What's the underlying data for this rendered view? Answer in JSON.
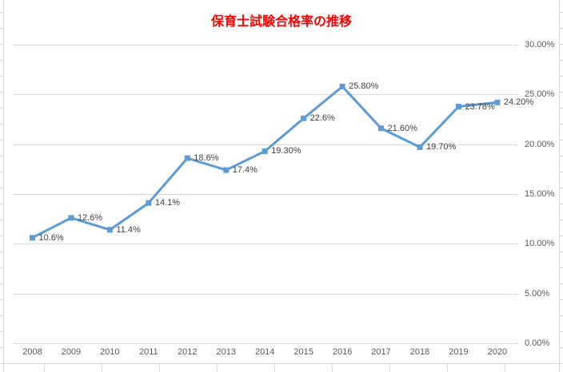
{
  "chart_data": {
    "type": "line",
    "title": "保育士試験合格率の推移",
    "title_color": "#FF0000",
    "categories": [
      "2008",
      "2009",
      "2010",
      "2011",
      "2012",
      "2013",
      "2014",
      "2015",
      "2016",
      "2017",
      "2018",
      "2019",
      "2020"
    ],
    "series": [
      {
        "name": "保育士試験合格率",
        "values": [
          10.6,
          12.6,
          11.4,
          14.1,
          18.6,
          17.4,
          19.3,
          22.6,
          25.8,
          21.6,
          19.7,
          23.78,
          24.2
        ],
        "point_labels": [
          "10.6%",
          "12.6%",
          "11.4%",
          "14.1%",
          "18.6%",
          "17.4%",
          "19.30%",
          "22.6%",
          "25.80%",
          "21.60%",
          "19.70%",
          "23.78%",
          "24.20%"
        ],
        "color": "#5B9BD5"
      }
    ],
    "xlabel": "",
    "ylabel": "",
    "ylim": [
      0,
      30
    ],
    "y_axis_side": "right",
    "y_tick_labels": [
      "30.00%",
      "25.00%",
      "20.00%",
      "15.00%",
      "10.00%",
      "5.00%",
      "0.00%"
    ],
    "y_tick_values": [
      30,
      25,
      20,
      15,
      10,
      5,
      0
    ],
    "grid": "horizontal",
    "legend_position": "none",
    "colors": {
      "gridline": "#d9d9d9",
      "axis_text": "#595959",
      "data_label_text": "#404040",
      "sheet_line": "#d9d9d9"
    }
  }
}
